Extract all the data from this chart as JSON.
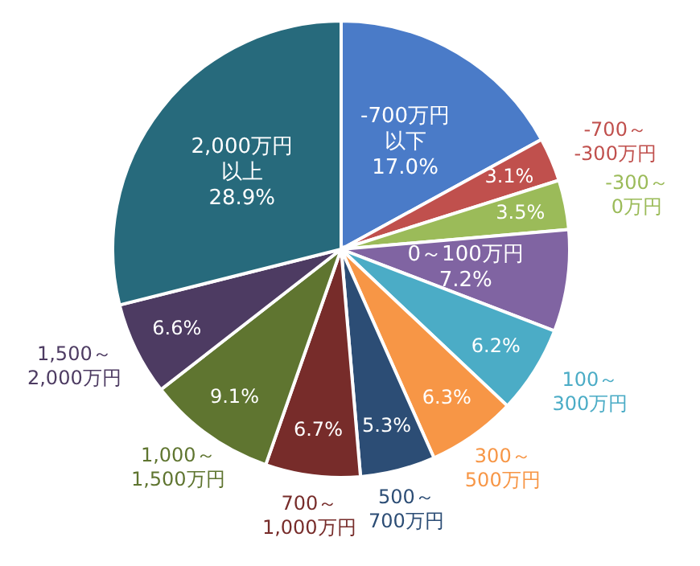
{
  "chart_data": {
    "type": "pie",
    "categories": [
      "-700万円以下",
      "-700～-300万円",
      "-300～0万円",
      "0～100万円",
      "100～300万円",
      "300～500万円",
      "500～700万円",
      "700～1,000万円",
      "1,000～1,500万円",
      "1,500～2,000万円",
      "2,000万円以上"
    ],
    "values": [
      17.0,
      3.1,
      3.5,
      7.2,
      6.2,
      6.3,
      5.3,
      6.7,
      9.1,
      6.6,
      28.9
    ],
    "value_labels": [
      "17.0%",
      "3.1%",
      "3.5%",
      "7.2%",
      "6.2%",
      "6.3%",
      "5.3%",
      "6.7%",
      "9.1%",
      "6.6%",
      "28.9%"
    ],
    "colors": [
      "#4a7bc8",
      "#c0504d",
      "#9bbb59",
      "#8064a2",
      "#4bacc6",
      "#f79646",
      "#2c4d75",
      "#772c2a",
      "#5f7530",
      "#4d3b62",
      "#276a7c"
    ]
  }
}
